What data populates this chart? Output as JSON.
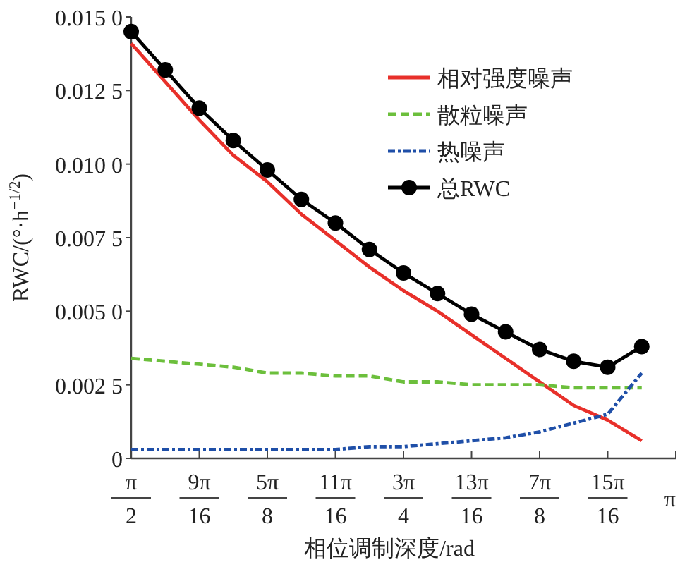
{
  "chart_data": {
    "type": "line",
    "xlabel": "相位调制深度/rad",
    "ylabel": "RWC/(°·h$^{−1/2}$)",
    "categories": [
      "π/2",
      null,
      "9π/16",
      null,
      "5π/8",
      null,
      "11π/16",
      null,
      "3π/4",
      null,
      "13π/16",
      null,
      "7π/8",
      null,
      "15π/16",
      null,
      "π"
    ],
    "series": [
      {
        "name": "相对强度噪声",
        "color": "#e8302a",
        "line_style": "solid",
        "marker": "none",
        "values": [
          0.0141,
          0.0128,
          0.0115,
          0.0103,
          0.0094,
          0.0083,
          0.0074,
          0.0065,
          0.0057,
          0.005,
          0.0042,
          0.0034,
          0.0026,
          0.0018,
          0.0013,
          0.0006,
          null
        ]
      },
      {
        "name": "散粒噪声",
        "color": "#6cbf3c",
        "line_style": "dashed",
        "marker": "none",
        "values": [
          0.0034,
          0.0033,
          0.0032,
          0.0031,
          0.0029,
          0.0029,
          0.0028,
          0.0028,
          0.0026,
          0.0026,
          0.0025,
          0.0025,
          0.0025,
          0.0024,
          0.0024,
          0.0024,
          null
        ]
      },
      {
        "name": "热噪声",
        "color": "#1f4fa8",
        "line_style": "dashdot",
        "marker": "none",
        "values": [
          0.0003,
          0.0003,
          0.0003,
          0.0003,
          0.0003,
          0.0003,
          0.0003,
          0.0004,
          0.0004,
          0.0005,
          0.0006,
          0.0007,
          0.0009,
          0.0012,
          0.0015,
          0.0029,
          null
        ]
      },
      {
        "name": "总RWC",
        "color": "#000000",
        "line_style": "solid",
        "marker": "circle",
        "values": [
          0.0145,
          0.0132,
          0.0119,
          0.0108,
          0.0098,
          0.0088,
          0.008,
          0.0071,
          0.0063,
          0.0056,
          0.0049,
          0.0043,
          0.0037,
          0.0033,
          0.0031,
          0.0038,
          null
        ]
      }
    ],
    "ylim": [
      0,
      0.015
    ],
    "yticks": [
      0,
      0.0025,
      {
        "value": 0.005,
        "label": "0.0050"
      },
      0.0075,
      {
        "value": 0.01,
        "label": "0.0100"
      },
      0.0125,
      {
        "value": 0.015,
        "label": "0.0150"
      }
    ],
    "grid": false,
    "legend": "top right"
  }
}
